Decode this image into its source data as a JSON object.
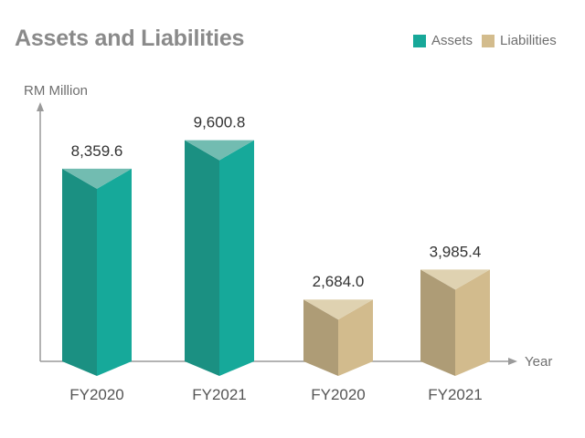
{
  "chart_data": {
    "type": "bar",
    "title": "Assets and Liabilities",
    "ylabel": "RM Million",
    "xlabel": "Year",
    "grid": false,
    "legend_position": "top-right",
    "legend": [
      {
        "name": "Assets",
        "color": "#17a899"
      },
      {
        "name": "Liabilities",
        "color": "#d3bc8d"
      }
    ],
    "bars": [
      {
        "category": "FY2020",
        "series": "Assets",
        "value": 8359.6,
        "label": "8,359.6"
      },
      {
        "category": "FY2021",
        "series": "Assets",
        "value": 9600.8,
        "label": "9,600.8"
      },
      {
        "category": "FY2020",
        "series": "Liabilities",
        "value": 2684.0,
        "label": "2,684.0"
      },
      {
        "category": "FY2021",
        "series": "Liabilities",
        "value": 3985.4,
        "label": "3,985.4"
      }
    ],
    "colors": {
      "Assets": {
        "front": "#16a99a",
        "side": "#1b9082",
        "top": "#72bcb1"
      },
      "Liabilities": {
        "front": "#d2bb8d",
        "side": "#ae9c76",
        "top": "#dfd2b1"
      }
    },
    "axis_color": "#9a9a9a"
  }
}
